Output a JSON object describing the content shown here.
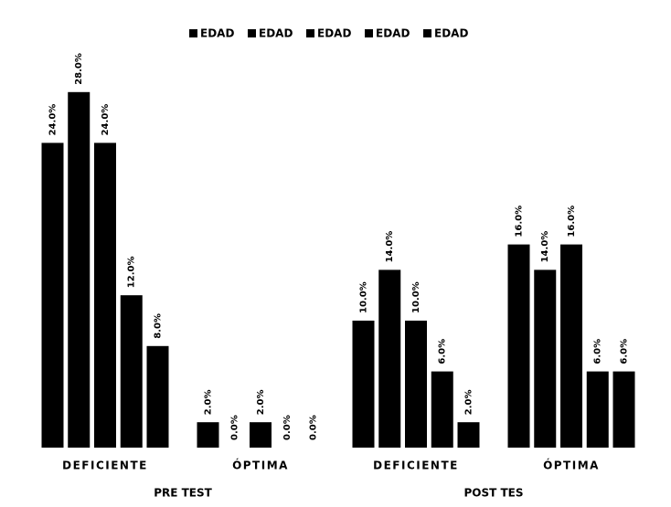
{
  "chart_data": {
    "type": "bar",
    "categories": [
      "DEFICIENTE",
      "ÓPTIMA",
      "DEFICIENTE",
      "ÓPTIMA"
    ],
    "groups": [
      "PRE TEST",
      "POST TES"
    ],
    "series": [
      {
        "name": "EDAD",
        "color": "#000000",
        "values": [
          24,
          2,
          10,
          16
        ],
        "value_labels": [
          "24.0%",
          "2.0%",
          "10.0%",
          "16.0%"
        ]
      },
      {
        "name": "EDAD",
        "color": "#000000",
        "values": [
          28,
          0,
          14,
          14
        ],
        "value_labels": [
          "28.0%",
          "0.0%",
          "14.0%",
          "14.0%"
        ]
      },
      {
        "name": "EDAD",
        "color": "#000000",
        "values": [
          24,
          2,
          10,
          16
        ],
        "value_labels": [
          "24.0%",
          "2.0%",
          "10.0%",
          "16.0%"
        ]
      },
      {
        "name": "EDAD",
        "color": "#000000",
        "values": [
          12,
          0,
          6,
          6
        ],
        "value_labels": [
          "12.0%",
          "0.0%",
          "6.0%",
          "6.0%"
        ]
      },
      {
        "name": "EDAD",
        "color": "#000000",
        "values": [
          8,
          0,
          2,
          6
        ],
        "value_labels": [
          "8.0%",
          "0.0%",
          "2.0%",
          "6.0%"
        ]
      }
    ],
    "ylim": [
      0,
      30
    ],
    "legend": "top"
  }
}
